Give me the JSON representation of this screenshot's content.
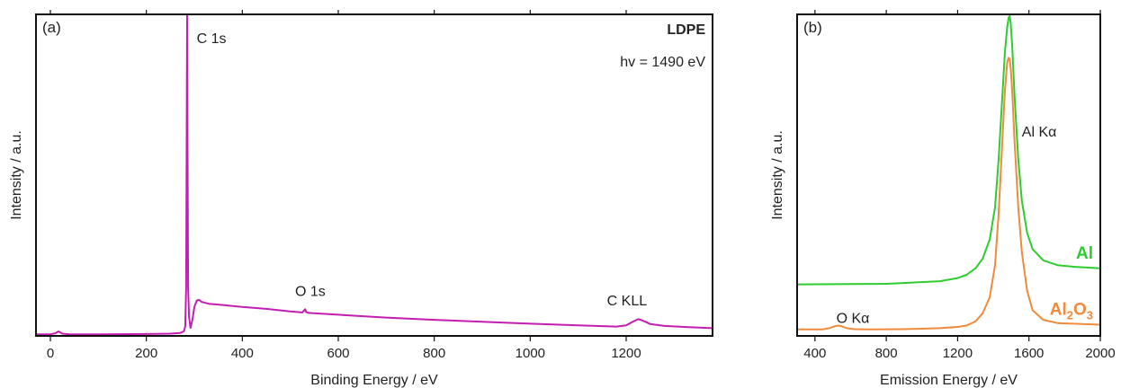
{
  "chart_data": [
    {
      "type": "line",
      "panel_label": "(a)",
      "xlabel": "Binding Energy / eV",
      "ylabel": "Intensity / a.u.",
      "xlim": [
        -30,
        1380
      ],
      "ylim": [
        0,
        100
      ],
      "xticks": [
        0,
        200,
        400,
        600,
        800,
        1000,
        1200
      ],
      "xtick_labels": [
        "0",
        "200",
        "400",
        "600",
        "800",
        "1000",
        "1200"
      ],
      "legend_title": "LDPE",
      "photon_energy": "hv = 1490 eV",
      "annotations": [
        {
          "text": "C 1s",
          "x": 305,
          "y": 91
        },
        {
          "text": "O 1s",
          "x": 510,
          "y": 12.5
        },
        {
          "text": "C KLL",
          "x": 1160,
          "y": 9.5
        }
      ],
      "series": [
        {
          "color": "#c21fb1",
          "x": [
            -30,
            0,
            10,
            17,
            25,
            40,
            100,
            200,
            250,
            270,
            278,
            281,
            283,
            284,
            285,
            286,
            287,
            289,
            292,
            296,
            300,
            305,
            310,
            315,
            320,
            330,
            360,
            400,
            450,
            500,
            525,
            531,
            533,
            537,
            545,
            600,
            700,
            800,
            900,
            1000,
            1100,
            1180,
            1200,
            1215,
            1225,
            1230,
            1240,
            1250,
            1280,
            1330,
            1380
          ],
          "y": [
            0.5,
            0.5,
            0.8,
            1.4,
            0.7,
            0.5,
            0.5,
            0.6,
            0.7,
            0.9,
            1.4,
            3.0,
            15,
            60,
            100,
            55,
            15,
            6,
            2.5,
            5,
            9,
            11,
            11.2,
            10.6,
            10.4,
            10.0,
            9.6,
            9.0,
            8.4,
            7.6,
            7.3,
            8.3,
            7.4,
            7.2,
            7.1,
            6.6,
            5.7,
            5.0,
            4.4,
            3.8,
            3.3,
            2.9,
            3.3,
            4.5,
            5.2,
            5.0,
            4.4,
            3.7,
            3.1,
            2.7,
            2.4
          ]
        }
      ]
    },
    {
      "type": "line",
      "panel_label": "(b)",
      "xlabel": "Emission Energy / eV",
      "ylabel": "Intensity / a.u.",
      "xlim": [
        300,
        2000
      ],
      "ylim": [
        0,
        100
      ],
      "xticks": [
        400,
        800,
        1200,
        1600,
        2000
      ],
      "xtick_labels": [
        "400",
        "800",
        "1200",
        "1600",
        "2000"
      ],
      "annotations": [
        {
          "text": "Al Kα",
          "x": 1560,
          "y": 62
        },
        {
          "text": "O Kα",
          "x": 520,
          "y": 4
        }
      ],
      "series": [
        {
          "name": "Al",
          "color": "#2fcc2f",
          "x": [
            300,
            800,
            1100,
            1200,
            1250,
            1300,
            1340,
            1380,
            1410,
            1430,
            1450,
            1465,
            1478,
            1486,
            1492,
            1498,
            1506,
            1520,
            1540,
            1560,
            1590,
            1620,
            1680,
            1760,
            1850,
            2000
          ],
          "y": [
            16,
            16.2,
            17,
            18,
            19,
            21,
            24,
            30,
            40,
            55,
            74,
            88,
            96,
            99,
            99.5,
            97,
            90,
            74,
            55,
            42,
            32,
            27,
            23.5,
            22,
            21.5,
            21
          ]
        },
        {
          "name": "Al",
          "sub": "2",
          "suffix": "O",
          "sub2": "3",
          "color": "#f08a3c",
          "x": [
            300,
            440,
            480,
            510,
            530,
            550,
            580,
            620,
            700,
            900,
            1100,
            1200,
            1250,
            1300,
            1340,
            1380,
            1410,
            1430,
            1450,
            1465,
            1478,
            1486,
            1492,
            1498,
            1506,
            1520,
            1540,
            1560,
            1590,
            1620,
            1680,
            1760,
            2000
          ],
          "y": [
            2,
            2,
            2.4,
            3,
            3.2,
            3,
            2.4,
            2.1,
            2,
            2.1,
            2.4,
            2.8,
            3.2,
            4.5,
            7,
            12,
            22,
            38,
            60,
            76,
            85,
            86.5,
            86,
            83,
            76,
            60,
            40,
            26,
            14,
            8,
            5,
            4,
            3.5
          ]
        }
      ]
    }
  ]
}
